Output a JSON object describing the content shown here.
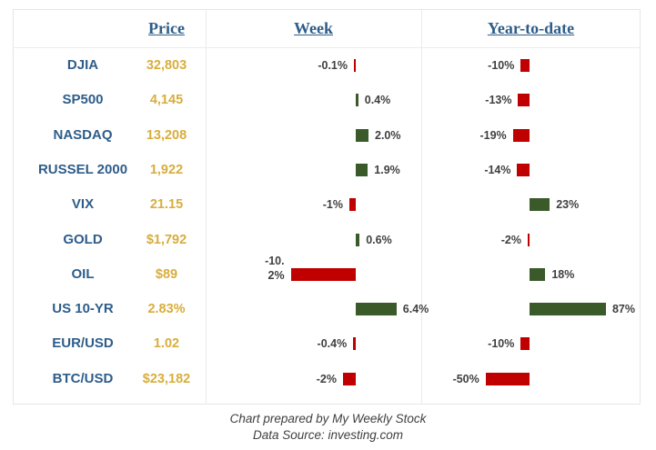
{
  "headers": {
    "price": "Price",
    "week": "Week",
    "ytd": "Year-to-date"
  },
  "colors": {
    "positive": "#3a5a2a",
    "negative": "#c00000",
    "name": "#2e5d8a",
    "price": "#d8ad3c"
  },
  "chart_data": {
    "type": "bar",
    "categories": [
      "DJIA",
      "SP500",
      "NASDAQ",
      "RUSSEL 2000",
      "VIX",
      "GOLD",
      "OIL",
      "US 10-YR",
      "EUR/USD",
      "BTC/USD"
    ],
    "prices": [
      "32,803",
      "4,145",
      "13,208",
      "1,922",
      "21.15",
      "$1,792",
      "$89",
      "2.83%",
      "1.02",
      "$23,182"
    ],
    "series": [
      {
        "name": "Week",
        "values": [
          -0.1,
          0.4,
          2.0,
          1.9,
          -1,
          0.6,
          -10.2,
          6.4,
          -0.4,
          -2
        ],
        "labels": [
          "-0.1%",
          "0.4%",
          "2.0%",
          "1.9%",
          "-1%",
          "0.6%",
          "-10.2%",
          "6.4%",
          "-0.4%",
          "-2%"
        ]
      },
      {
        "name": "Year-to-date",
        "values": [
          -10,
          -13,
          -19,
          -14,
          23,
          -2,
          18,
          87,
          -10,
          -50
        ],
        "labels": [
          "-10%",
          "-13%",
          "-19%",
          "-14%",
          "23%",
          "-2%",
          "18%",
          "87%",
          "-10%",
          "-50%"
        ]
      }
    ]
  },
  "footer": {
    "line1": "Chart prepared by My Weekly Stock",
    "line2": "Data Source: investing.com"
  }
}
